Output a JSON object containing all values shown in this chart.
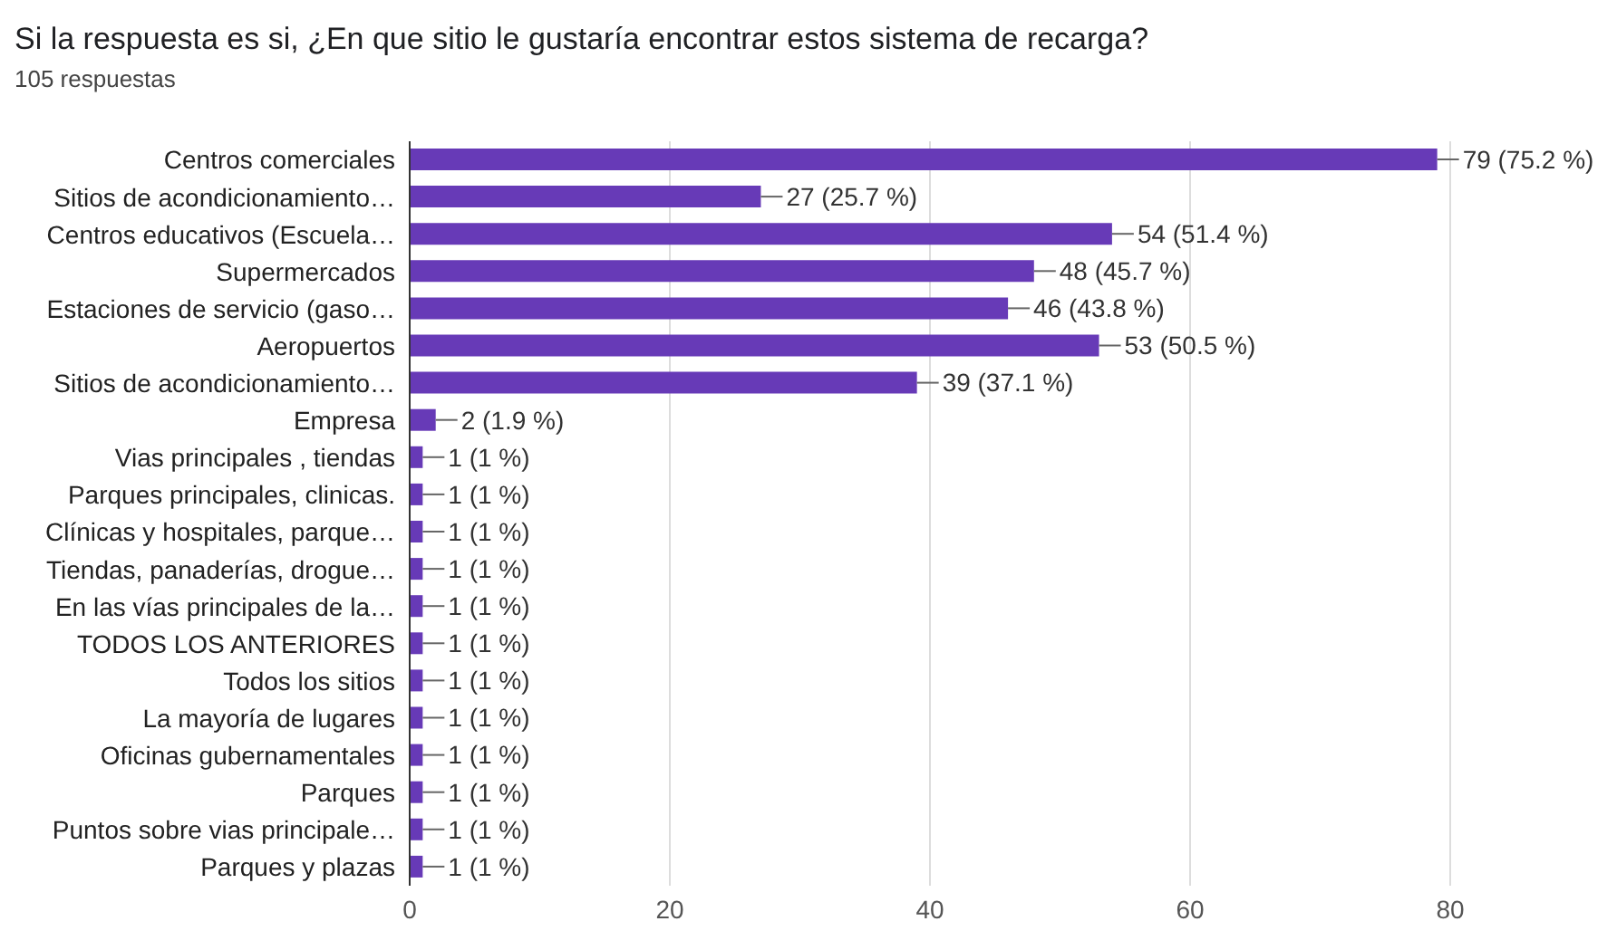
{
  "chart_data": {
    "type": "bar",
    "orientation": "horizontal",
    "title": "Si la respuesta es si, ¿En que sitio le gustaría encontrar estos sistema de recarga?",
    "subtitle": "105 respuestas",
    "categories": [
      "Centros comerciales",
      "Sitios de acondicionamiento…",
      "Centros educativos (Escuela…",
      "Supermercados",
      "Estaciones de servicio (gaso…",
      "Aeropuertos",
      "Sitios de acondicionamiento…",
      "Empresa",
      "Vias principales , tiendas",
      "Parques principales, clinicas.",
      "Clínicas y hospitales, parque…",
      "Tiendas, panaderías, drogue…",
      "En las vías principales de la…",
      "TODOS LOS ANTERIORES",
      "Todos los sitios",
      "La mayoría de lugares",
      "Oficinas gubernamentales",
      "Parques",
      "Puntos sobre vias principale…",
      "Parques y plazas"
    ],
    "values": [
      79,
      27,
      54,
      48,
      46,
      53,
      39,
      2,
      1,
      1,
      1,
      1,
      1,
      1,
      1,
      1,
      1,
      1,
      1,
      1
    ],
    "value_labels": [
      "79 (75.2 %)",
      "27 (25.7 %)",
      "54 (51.4 %)",
      "48 (45.7 %)",
      "46 (43.8 %)",
      "53 (50.5 %)",
      "39 (37.1 %)",
      "2 (1.9 %)",
      "1 (1 %)",
      "1 (1 %)",
      "1 (1 %)",
      "1 (1 %)",
      "1 (1 %)",
      "1 (1 %)",
      "1 (1 %)",
      "1 (1 %)",
      "1 (1 %)",
      "1 (1 %)",
      "1 (1 %)",
      "1 (1 %)"
    ],
    "color": "#673ab7",
    "xlim": [
      0,
      80
    ],
    "xticks": [
      0,
      20,
      40,
      60,
      80
    ],
    "grid": "x"
  }
}
